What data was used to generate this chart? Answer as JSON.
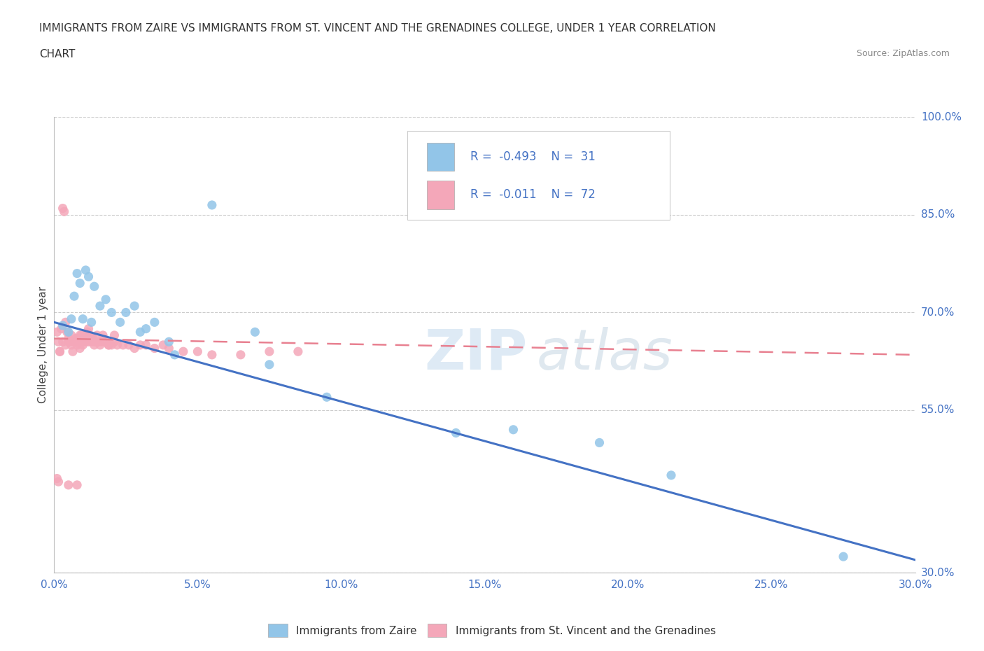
{
  "title_line1": "IMMIGRANTS FROM ZAIRE VS IMMIGRANTS FROM ST. VINCENT AND THE GRENADINES COLLEGE, UNDER 1 YEAR CORRELATION",
  "title_line2": "CHART",
  "source": "Source: ZipAtlas.com",
  "color_zaire": "#92C5E8",
  "color_svg": "#F4A7B9",
  "trendline_zaire": "#4472C4",
  "trendline_svg": "#E88090",
  "watermark": "ZIPatlas",
  "zaire_x": [
    0.3,
    0.5,
    0.7,
    0.9,
    1.0,
    1.2,
    1.4,
    1.6,
    1.8,
    2.0,
    2.3,
    2.5,
    3.0,
    3.5,
    4.2,
    5.5,
    7.0,
    9.5,
    14.0,
    16.0,
    19.0,
    21.5,
    0.6,
    0.8,
    1.1,
    1.3,
    2.8,
    3.2,
    4.0,
    7.5,
    27.5
  ],
  "zaire_y": [
    68.0,
    67.0,
    72.5,
    74.5,
    69.0,
    75.5,
    74.0,
    71.0,
    72.0,
    70.0,
    68.5,
    70.0,
    67.0,
    68.5,
    63.5,
    86.5,
    67.0,
    57.0,
    51.5,
    52.0,
    50.0,
    45.0,
    69.0,
    76.0,
    76.5,
    68.5,
    71.0,
    67.5,
    65.5,
    62.0,
    32.5
  ],
  "svg_x": [
    0.1,
    0.15,
    0.2,
    0.25,
    0.3,
    0.35,
    0.4,
    0.45,
    0.5,
    0.55,
    0.6,
    0.65,
    0.7,
    0.75,
    0.8,
    0.85,
    0.9,
    0.95,
    1.0,
    1.05,
    1.1,
    1.15,
    1.2,
    1.25,
    1.3,
    1.35,
    1.4,
    1.45,
    1.5,
    1.6,
    1.7,
    1.8,
    1.9,
    2.0,
    2.1,
    2.2,
    2.4,
    2.6,
    2.8,
    3.0,
    3.2,
    3.5,
    3.8,
    4.0,
    4.5,
    5.0,
    5.5,
    6.5,
    7.5,
    8.5,
    0.3,
    0.5,
    0.7,
    0.9,
    1.1,
    1.3,
    1.5,
    1.7,
    1.9,
    2.1,
    0.2,
    0.4,
    0.6,
    0.8,
    1.0,
    1.2,
    1.4,
    1.6,
    0.15,
    0.5,
    0.8,
    0.1
  ],
  "svg_y": [
    67.0,
    65.5,
    64.0,
    67.5,
    86.0,
    85.5,
    68.5,
    67.0,
    66.0,
    65.5,
    66.5,
    64.0,
    65.5,
    66.0,
    65.5,
    66.0,
    64.5,
    66.5,
    65.5,
    66.5,
    65.5,
    67.0,
    67.5,
    66.5,
    66.0,
    66.0,
    65.5,
    65.5,
    66.5,
    65.5,
    66.5,
    65.5,
    65.0,
    65.0,
    66.5,
    65.0,
    65.0,
    65.0,
    64.5,
    65.0,
    65.0,
    64.5,
    65.0,
    64.5,
    64.0,
    64.0,
    63.5,
    63.5,
    64.0,
    64.0,
    65.5,
    65.5,
    65.5,
    66.5,
    66.0,
    65.5,
    65.5,
    65.5,
    65.0,
    65.5,
    64.0,
    65.0,
    65.0,
    65.0,
    65.0,
    65.5,
    65.0,
    65.0,
    44.0,
    43.5,
    43.5,
    44.5
  ],
  "xmin": 0.0,
  "xmax": 30.0,
  "ymin": 30.0,
  "ymax": 100.0,
  "yticks": [
    30.0,
    55.0,
    70.0,
    85.0,
    100.0
  ],
  "xticks": [
    0.0,
    5.0,
    10.0,
    15.0,
    20.0,
    25.0,
    30.0
  ],
  "zaire_trend_x0": 0.0,
  "zaire_trend_y0": 68.5,
  "zaire_trend_x1": 30.0,
  "zaire_trend_y1": 32.0,
  "svg_trend_x0": 0.0,
  "svg_trend_y0": 66.0,
  "svg_trend_x1": 30.0,
  "svg_trend_y1": 63.5
}
